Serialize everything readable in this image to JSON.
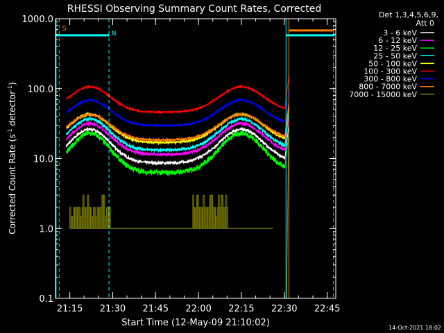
{
  "chart_data": {
    "type": "line",
    "title": "RHESSI Observing Summary Count Rates, Corrected",
    "xlabel": "Start Time (12-May-09 21:10:02)",
    "ylabel_main": "Corrected Count Rate (s",
    "ylabel_sup": "-1",
    "ylabel_tail": " detector",
    "ylabel_sup2": "-1",
    "ylabel_end": ")",
    "yscale": "log",
    "ylim": [
      0.1,
      1000
    ],
    "xlim_minutes": [
      0,
      98
    ],
    "y_ticks": [
      {
        "value": 0.1,
        "label": "0.1"
      },
      {
        "value": 1,
        "label": "1.0"
      },
      {
        "value": 10,
        "label": "10.0"
      },
      {
        "value": 100,
        "label": "100.0"
      },
      {
        "value": 1000,
        "label": "1000.0"
      }
    ],
    "x_ticks": [
      {
        "minute": 5,
        "label": "21:15"
      },
      {
        "minute": 20,
        "label": "21:30"
      },
      {
        "minute": 35,
        "label": "21:45"
      },
      {
        "minute": 50,
        "label": "22:00"
      },
      {
        "minute": 65,
        "label": "22:15"
      },
      {
        "minute": 80,
        "label": "22:30"
      },
      {
        "minute": 95,
        "label": "22:45"
      }
    ],
    "legend_header": [
      "Det 1,3,4,5,6,9,",
      "Att 0"
    ],
    "series": [
      {
        "name": "3 - 6 keV",
        "color": "#ffffff",
        "base": 15,
        "amp": 0.6,
        "noise": 0.04
      },
      {
        "name": "6 - 12 keV",
        "color": "#ff00ff",
        "base": 19,
        "amp": 0.55,
        "noise": 0.04
      },
      {
        "name": "12 - 25 keV",
        "color": "#00ff00",
        "base": 12,
        "amp": 0.7,
        "noise": 0.08
      },
      {
        "name": "25 - 50 keV",
        "color": "#00ffff",
        "base": 22,
        "amp": 0.55,
        "noise": 0.04
      },
      {
        "name": "50 - 100 keV",
        "color": "#ffff00",
        "base": 27,
        "amp": 0.5,
        "noise": 0.03
      },
      {
        "name": "100 - 300 keV",
        "color": "#ff0000",
        "base": 70,
        "amp": 0.45,
        "noise": 0.02
      },
      {
        "name": "300 - 800 keV",
        "color": "#0000ff",
        "base": 45,
        "amp": 0.45,
        "noise": 0.02
      },
      {
        "name": "800 - 7000 keV",
        "color": "#ff8000",
        "base": 28,
        "amp": 0.45,
        "noise": 0.025
      },
      {
        "name": "7000 - 15000 keV",
        "color": "#808000",
        "base": 1.5,
        "amp": 0,
        "noise": 0
      }
    ],
    "annotations": {
      "saa_label": "S",
      "night_label": "N",
      "saa_color": "#ff8000",
      "night_color": "#00ffff"
    },
    "timestamp": "14-Oct-2021 18:02"
  }
}
